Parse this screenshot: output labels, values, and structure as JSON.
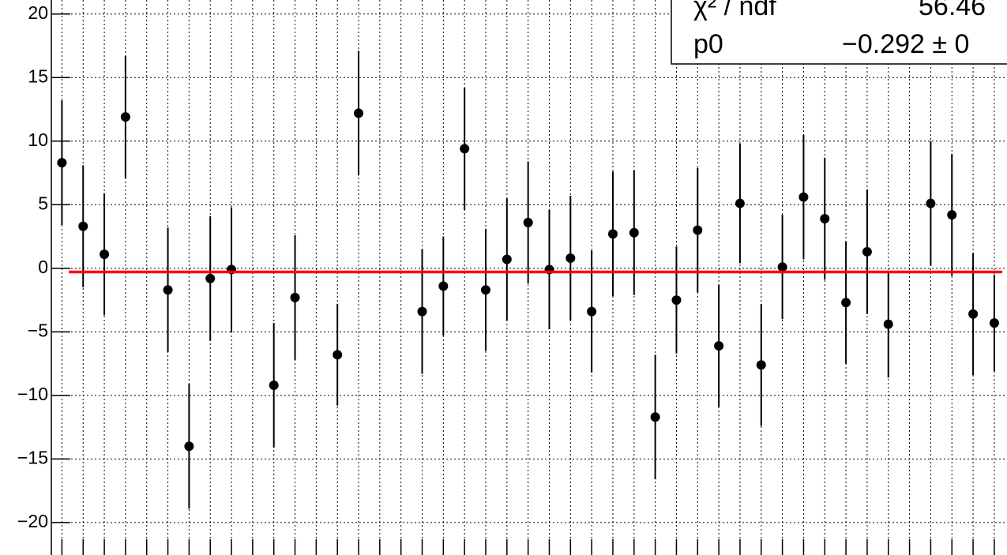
{
  "chart_data": {
    "type": "scatter",
    "x": [
      0,
      1,
      2,
      3,
      5,
      6,
      7,
      8,
      10,
      11,
      13,
      14,
      17,
      18,
      19,
      20,
      21,
      22,
      23,
      24,
      25,
      26,
      27,
      28,
      29,
      30,
      31,
      32,
      33,
      34,
      35,
      36,
      37,
      38,
      39,
      41,
      42,
      43,
      44
    ],
    "values": [
      8.3,
      3.3,
      1.1,
      11.9,
      -1.7,
      -14.0,
      -0.8,
      -0.1,
      -9.2,
      -2.3,
      -6.8,
      12.2,
      -3.4,
      -1.4,
      9.4,
      -1.7,
      0.7,
      3.6,
      -0.1,
      0.8,
      -3.4,
      2.7,
      2.8,
      -11.7,
      -2.5,
      3.0,
      -6.1,
      5.1,
      -7.6,
      0.1,
      5.6,
      3.9,
      -2.7,
      1.3,
      -4.4,
      5.1,
      4.2,
      -3.6,
      -4.3
    ],
    "errors": [
      4.9,
      4.8,
      4.8,
      4.8,
      4.9,
      4.9,
      4.9,
      4.9,
      4.9,
      4.9,
      4.0,
      4.9,
      4.9,
      3.9,
      4.8,
      4.8,
      4.8,
      4.8,
      4.7,
      4.9,
      4.8,
      4.9,
      4.9,
      4.9,
      4.2,
      4.9,
      4.8,
      4.7,
      4.8,
      4.1,
      4.9,
      4.8,
      4.8,
      4.9,
      4.2,
      4.9,
      4.8,
      4.8,
      3.8
    ],
    "color": "#000000",
    "xlim": [
      -0.5,
      44.6
    ],
    "xticks": [
      0,
      1,
      2,
      3,
      4,
      5,
      6,
      7,
      8,
      9,
      10,
      11,
      12,
      13,
      14,
      15,
      16,
      17,
      18,
      19,
      20,
      21,
      22,
      23,
      24,
      25,
      26,
      27,
      28,
      29,
      30,
      31,
      32,
      33,
      34,
      35,
      36,
      37,
      38,
      39,
      40,
      41,
      42,
      43,
      44
    ],
    "ylim": [
      -22.55,
      21.1
    ],
    "yticks": [
      {
        "value": -20,
        "label": "−20"
      },
      {
        "value": -15,
        "label": "−15"
      },
      {
        "value": -10,
        "label": "−10"
      },
      {
        "value": -5,
        "label": "−5"
      },
      0,
      5,
      10,
      15,
      20
    ],
    "grid": true,
    "fit": {
      "p0": -0.292,
      "color": "#ff0000"
    },
    "stats": {
      "chi2_label": "χ² / ndf",
      "chi2_value": "56.46",
      "p0_label": "p0",
      "p0_value": "−0.292 ± 0"
    }
  }
}
